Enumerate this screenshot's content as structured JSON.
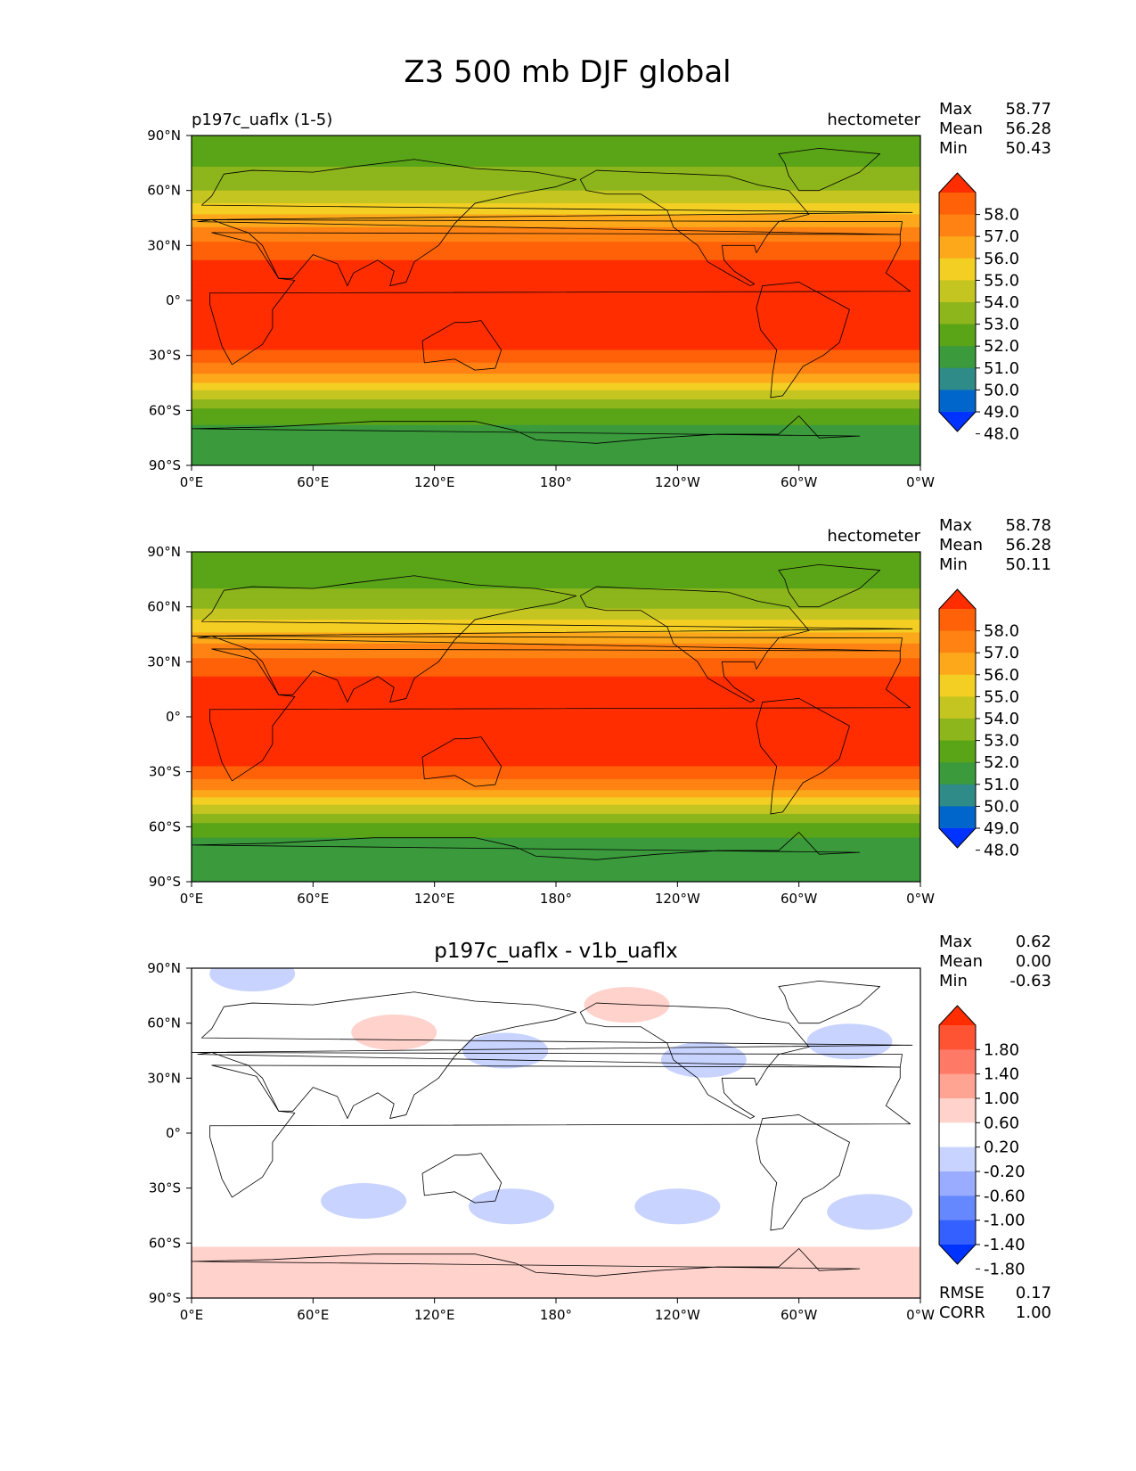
{
  "figure_title": "Z3 500 mb DJF global",
  "panels": [
    {
      "left_title": "p197c_uaflx (1-5)",
      "center_title": "",
      "units": "hectometer",
      "stats": [
        {
          "label": "Max",
          "value": "58.77"
        },
        {
          "label": "Mean",
          "value": "56.28"
        },
        {
          "label": "Min",
          "value": "50.43"
        }
      ],
      "colorbar_labels": [
        "58.0",
        "57.0",
        "56.0",
        "55.0",
        "54.0",
        "53.0",
        "52.0",
        "51.0",
        "50.0",
        "49.0",
        "48.0"
      ]
    },
    {
      "left_title": "",
      "center_title": "",
      "units": "hectometer",
      "stats": [
        {
          "label": "Max",
          "value": "58.78"
        },
        {
          "label": "Mean",
          "value": "56.28"
        },
        {
          "label": "Min",
          "value": "50.11"
        }
      ],
      "colorbar_labels": [
        "58.0",
        "57.0",
        "56.0",
        "55.0",
        "54.0",
        "53.0",
        "52.0",
        "51.0",
        "50.0",
        "49.0",
        "48.0"
      ]
    },
    {
      "left_title": "",
      "center_title": "p197c_uaflx - v1b_uaflx",
      "units": "",
      "stats": [
        {
          "label": "Max",
          "value": "0.62"
        },
        {
          "label": "Mean",
          "value": "0.00"
        },
        {
          "label": "Min",
          "value": "-0.63"
        }
      ],
      "colorbar_labels": [
        "1.80",
        "1.40",
        "1.00",
        "0.60",
        "0.20",
        "-0.20",
        "-0.60",
        "-1.00",
        "-1.40",
        "-1.80"
      ],
      "extra_stats": [
        {
          "label": "RMSE",
          "value": "0.17"
        },
        {
          "label": "CORR",
          "value": "1.00"
        }
      ]
    }
  ],
  "colors": {
    "abs_levels": [
      "#0033ff",
      "#0066cc",
      "#2e8b87",
      "#3a9a3c",
      "#5aa418",
      "#8db51c",
      "#c4c520",
      "#f4cf23",
      "#fca81a",
      "#ff8212",
      "#ff6108",
      "#ff2d00"
    ],
    "diff_levels": [
      "#0033ff",
      "#3460ff",
      "#6688ff",
      "#9aacff",
      "#c8d3ff",
      "#ffffff",
      "#ffd2cc",
      "#ffa393",
      "#ff7a66",
      "#ff5434",
      "#ff2d00"
    ],
    "land_outline": "#000000"
  },
  "chart_data": [
    {
      "type": "heatmap",
      "title": "p197c_uaflx (1-5)",
      "units": "hectometer",
      "xlabel": "",
      "ylabel": "",
      "x_ticks": [
        "0°E",
        "60°E",
        "120°E",
        "180°",
        "120°W",
        "60°W",
        "0°W"
      ],
      "y_ticks": [
        "90°N",
        "60°N",
        "30°N",
        "0°",
        "30°S",
        "60°S",
        "90°S"
      ],
      "xlim": [
        0,
        360
      ],
      "ylim": [
        -90,
        90
      ],
      "levels": [
        48.0,
        49.0,
        50.0,
        51.0,
        52.0,
        53.0,
        54.0,
        55.0,
        56.0,
        57.0,
        58.0
      ],
      "zonal_profile": {
        "lat": [
          90,
          80,
          70,
          60,
          50,
          40,
          30,
          20,
          0,
          -20,
          -30,
          -40,
          -50,
          -60,
          -70,
          -80,
          -90
        ],
        "value": [
          51.2,
          51.6,
          52.2,
          53.0,
          54.5,
          56.0,
          57.3,
          58.2,
          58.6,
          58.4,
          57.8,
          56.0,
          53.8,
          51.8,
          50.8,
          50.5,
          50.5
        ]
      }
    },
    {
      "type": "heatmap",
      "title": "",
      "units": "hectometer",
      "xlabel": "",
      "ylabel": "",
      "x_ticks": [
        "0°E",
        "60°E",
        "120°E",
        "180°",
        "120°W",
        "60°W",
        "0°W"
      ],
      "y_ticks": [
        "90°N",
        "60°N",
        "30°N",
        "0°",
        "30°S",
        "60°S",
        "90°S"
      ],
      "xlim": [
        0,
        360
      ],
      "ylim": [
        -90,
        90
      ],
      "levels": [
        48.0,
        49.0,
        50.0,
        51.0,
        52.0,
        53.0,
        54.0,
        55.0,
        56.0,
        57.0,
        58.0
      ],
      "zonal_profile": {
        "lat": [
          90,
          80,
          70,
          60,
          50,
          40,
          30,
          20,
          0,
          -20,
          -30,
          -40,
          -50,
          -60,
          -70,
          -80,
          -90
        ],
        "value": [
          51.0,
          51.4,
          52.0,
          52.9,
          54.4,
          56.0,
          57.3,
          58.2,
          58.6,
          58.4,
          57.8,
          56.0,
          53.6,
          51.6,
          50.6,
          50.3,
          50.3
        ]
      }
    },
    {
      "type": "heatmap",
      "title": "p197c_uaflx - v1b_uaflx",
      "units": "",
      "xlabel": "",
      "ylabel": "",
      "x_ticks": [
        "0°E",
        "60°E",
        "120°E",
        "180°",
        "120°W",
        "60°W",
        "0°W"
      ],
      "y_ticks": [
        "90°N",
        "60°N",
        "30°N",
        "0°",
        "30°S",
        "60°S",
        "90°S"
      ],
      "xlim": [
        0,
        360
      ],
      "ylim": [
        -90,
        90
      ],
      "levels": [
        -1.8,
        -1.4,
        -1.0,
        -0.6,
        -0.2,
        0.2,
        0.6,
        1.0,
        1.4,
        1.8
      ],
      "anomalies": [
        {
          "lon": 30,
          "lat": 87,
          "value": -0.3
        },
        {
          "lon": 100,
          "lat": 55,
          "value": 0.3
        },
        {
          "lon": 155,
          "lat": 45,
          "value": -0.3
        },
        {
          "lon": 215,
          "lat": 70,
          "value": 0.3
        },
        {
          "lon": 253,
          "lat": 40,
          "value": -0.3
        },
        {
          "lon": 325,
          "lat": 50,
          "value": -0.3
        },
        {
          "lon": 85,
          "lat": -37,
          "value": -0.3
        },
        {
          "lon": 158,
          "lat": -40,
          "value": -0.3
        },
        {
          "lon": 240,
          "lat": -40,
          "value": -0.3
        },
        {
          "lon": 180,
          "lat": -72,
          "value": 0.3
        },
        {
          "lon": 335,
          "lat": -43,
          "value": -0.3
        }
      ]
    }
  ]
}
